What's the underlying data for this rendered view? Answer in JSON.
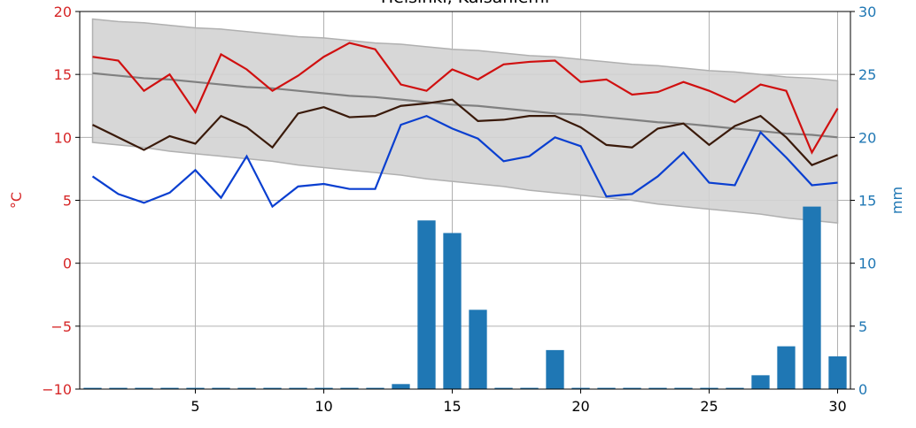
{
  "chart_data": {
    "type": "line",
    "title": "Helsinki, Kaisaniemi",
    "y_label": "°C",
    "y2_label": "mm",
    "x": [
      1,
      2,
      3,
      4,
      5,
      6,
      7,
      8,
      9,
      10,
      11,
      12,
      13,
      14,
      15,
      16,
      17,
      18,
      19,
      20,
      21,
      22,
      23,
      24,
      25,
      26,
      27,
      28,
      29,
      30
    ],
    "xlim": [
      0.5,
      30.5
    ],
    "xticks": [
      5,
      10,
      15,
      20,
      25,
      30
    ],
    "ylim": [
      -10,
      20
    ],
    "yticks": [
      {
        "value": -10,
        "label": "−10"
      },
      {
        "value": -5,
        "label": "−5"
      },
      0,
      5,
      10,
      15,
      20
    ],
    "y2lim": [
      0,
      30
    ],
    "y2ticks": [
      0,
      5,
      10,
      15,
      20,
      25,
      30
    ],
    "grid": true,
    "y_color": "#d62728",
    "y2_color": "#1f77b4",
    "band": {
      "color": "#d3d3d3",
      "edge": "#b0b0b0",
      "upper": [
        19.4,
        19.2,
        19.1,
        18.9,
        18.7,
        18.6,
        18.4,
        18.2,
        18.0,
        17.9,
        17.7,
        17.5,
        17.4,
        17.2,
        17.0,
        16.9,
        16.7,
        16.5,
        16.4,
        16.2,
        16.0,
        15.8,
        15.7,
        15.5,
        15.3,
        15.2,
        15.0,
        14.8,
        14.7,
        14.5
      ],
      "lower": [
        9.6,
        9.4,
        9.2,
        8.9,
        8.7,
        8.5,
        8.3,
        8.1,
        7.8,
        7.6,
        7.4,
        7.2,
        7.0,
        6.7,
        6.5,
        6.3,
        6.1,
        5.8,
        5.6,
        5.4,
        5.2,
        5.0,
        4.7,
        4.5,
        4.3,
        4.1,
        3.9,
        3.6,
        3.4,
        3.2
      ]
    },
    "series": [
      {
        "type": "bar",
        "axis": "y2",
        "color": "#1f77b4",
        "values": [
          0.1,
          0.1,
          0.1,
          0.1,
          0.1,
          0.1,
          0.1,
          0.1,
          0.1,
          0.1,
          0.1,
          0.1,
          0.4,
          13.4,
          12.4,
          6.3,
          0.1,
          0.1,
          3.1,
          0.1,
          0.1,
          0.1,
          0.1,
          0.1,
          0.1,
          0.1,
          1.1,
          3.4,
          14.5,
          2.6
        ]
      },
      {
        "type": "line",
        "color": "#808080",
        "values": [
          15.1,
          14.9,
          14.7,
          14.6,
          14.4,
          14.2,
          14.0,
          13.9,
          13.7,
          13.5,
          13.3,
          13.2,
          13.0,
          12.8,
          12.6,
          12.5,
          12.3,
          12.1,
          11.9,
          11.8,
          11.6,
          11.4,
          11.2,
          11.1,
          10.9,
          10.7,
          10.5,
          10.3,
          10.2,
          10.0
        ]
      },
      {
        "type": "line",
        "color": "#d01010",
        "values": [
          16.4,
          16.1,
          13.7,
          15.0,
          12.0,
          16.6,
          15.4,
          13.7,
          14.9,
          16.4,
          17.5,
          17.0,
          14.2,
          13.7,
          15.4,
          14.6,
          15.8,
          16.0,
          16.1,
          14.4,
          14.6,
          13.4,
          13.6,
          14.4,
          13.7,
          12.8,
          14.2,
          13.7,
          8.8,
          12.3
        ]
      },
      {
        "type": "line",
        "color": "#3a1a0a",
        "values": [
          11.0,
          10.0,
          9.0,
          10.1,
          9.5,
          11.7,
          10.8,
          9.2,
          11.9,
          12.4,
          11.6,
          11.7,
          12.5,
          12.7,
          13.0,
          11.3,
          11.4,
          11.7,
          11.7,
          10.8,
          9.4,
          9.2,
          10.7,
          11.1,
          9.4,
          10.9,
          11.7,
          10.0,
          7.8,
          8.6
        ]
      },
      {
        "type": "line",
        "color": "#0a3fd0",
        "values": [
          6.9,
          5.5,
          4.8,
          5.6,
          7.4,
          5.2,
          8.5,
          4.5,
          6.1,
          6.3,
          5.9,
          5.9,
          11.0,
          11.7,
          10.7,
          9.9,
          8.1,
          8.5,
          10.0,
          9.3,
          5.3,
          5.5,
          6.9,
          8.8,
          6.4,
          6.2,
          10.4,
          8.4,
          6.2,
          6.4
        ]
      }
    ]
  }
}
